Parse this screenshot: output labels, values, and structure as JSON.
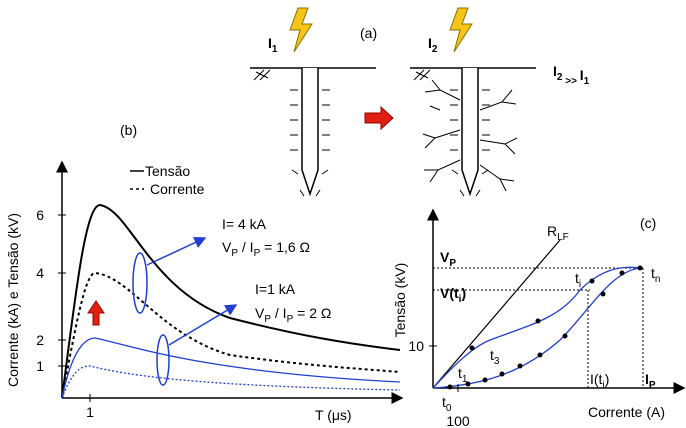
{
  "panel_a": {
    "label": "(a)",
    "current_1": [
      {
        "text": "I"
      },
      {
        "text": "1",
        "sub": true
      }
    ],
    "current_2": [
      {
        "text": "I"
      },
      {
        "text": "2",
        "sub": true
      }
    ],
    "comparison": [
      {
        "text": "I"
      },
      {
        "text": "2",
        "sub": true
      },
      {
        "text": " >> ",
        "sub": true
      },
      {
        "text": "I"
      },
      {
        "text": "1",
        "sub": true
      }
    ]
  },
  "panel_b": {
    "label": "(b)",
    "y_axis_label": "Corrente (kA)  e  Tensão (kV)",
    "x_axis_label": "T (μs)",
    "y_ticks": [
      "6",
      "4",
      "2",
      "1"
    ],
    "x_ticks": [
      "1"
    ],
    "legend": [
      "Tensão",
      "Corrente"
    ],
    "annotation_high_current": "I= 4 kA",
    "annotation_high_ratio": [
      {
        "text": "V"
      },
      {
        "text": "P",
        "sub": true
      },
      {
        "text": " / I"
      },
      {
        "text": "P",
        "sub": true
      },
      {
        "text": " = 1,6 Ω"
      }
    ],
    "annotation_low_current": "I=1 kA",
    "annotation_low_ratio": [
      {
        "text": "V"
      },
      {
        "text": "P",
        "sub": true
      },
      {
        "text": " / I"
      },
      {
        "text": "P",
        "sub": true
      },
      {
        "text": " = 2 Ω"
      }
    ]
  },
  "panel_c": {
    "label": "(c)",
    "y_axis_label": "Tensão (kV)",
    "x_axis_label": "Corrente (A)",
    "y_tick": "10",
    "x_tick": "100",
    "peak_voltage": [
      {
        "text": "V"
      },
      {
        "text": "P",
        "sub": true
      }
    ],
    "voltage_ti": [
      {
        "text": "V"
      },
      {
        "text": "(t"
      },
      {
        "text": "i",
        "sub": true
      },
      {
        "text": ")"
      }
    ],
    "line_label": [
      {
        "text": "R"
      },
      {
        "text": "LF",
        "sub": true
      }
    ],
    "point_ti": [
      {
        "text": "t"
      },
      {
        "text": "i",
        "sub": true
      }
    ],
    "point_tn": [
      {
        "text": "t"
      },
      {
        "text": "n",
        "sub": true
      }
    ],
    "point_t1": [
      {
        "text": "t"
      },
      {
        "text": "1",
        "sub": true
      }
    ],
    "point_t3": [
      {
        "text": "t"
      },
      {
        "text": "3",
        "sub": true
      }
    ],
    "point_t0": [
      {
        "text": "t"
      },
      {
        "text": "0",
        "sub": true
      }
    ],
    "current_ti": [
      {
        "text": "I(t"
      },
      {
        "text": "i",
        "sub": true
      },
      {
        "text": ")"
      }
    ],
    "peak_current": [
      {
        "text": "I"
      },
      {
        "text": "P",
        "sub": true
      }
    ]
  }
}
